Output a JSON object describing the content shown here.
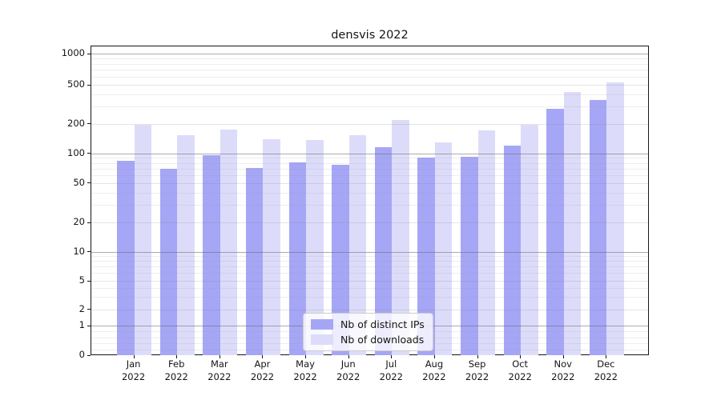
{
  "chart_data": {
    "type": "bar",
    "title": "densvis 2022",
    "yscale": "symlog",
    "grid": true,
    "categories": [
      "Jan",
      "Feb",
      "Mar",
      "Apr",
      "May",
      "Jun",
      "Jul",
      "Aug",
      "Sep",
      "Oct",
      "Nov",
      "Dec"
    ],
    "category_year": "2022",
    "series": [
      {
        "name": "Nb of distinct IPs",
        "color": "#a6a6f6",
        "values": [
          84,
          70,
          96,
          71,
          82,
          77,
          117,
          91,
          93,
          121,
          288,
          355
        ]
      },
      {
        "name": "Nb of downloads",
        "color": "#dcdcfa",
        "values": [
          197,
          154,
          176,
          141,
          139,
          154,
          221,
          131,
          172,
          196,
          425,
          530
        ]
      }
    ],
    "y_ticks": [
      0,
      1,
      2,
      5,
      10,
      20,
      50,
      100,
      200,
      500,
      1000
    ],
    "ylim": [
      0,
      1200
    ],
    "xlabel": "",
    "ylabel": "",
    "legend_position": "lower-center"
  }
}
